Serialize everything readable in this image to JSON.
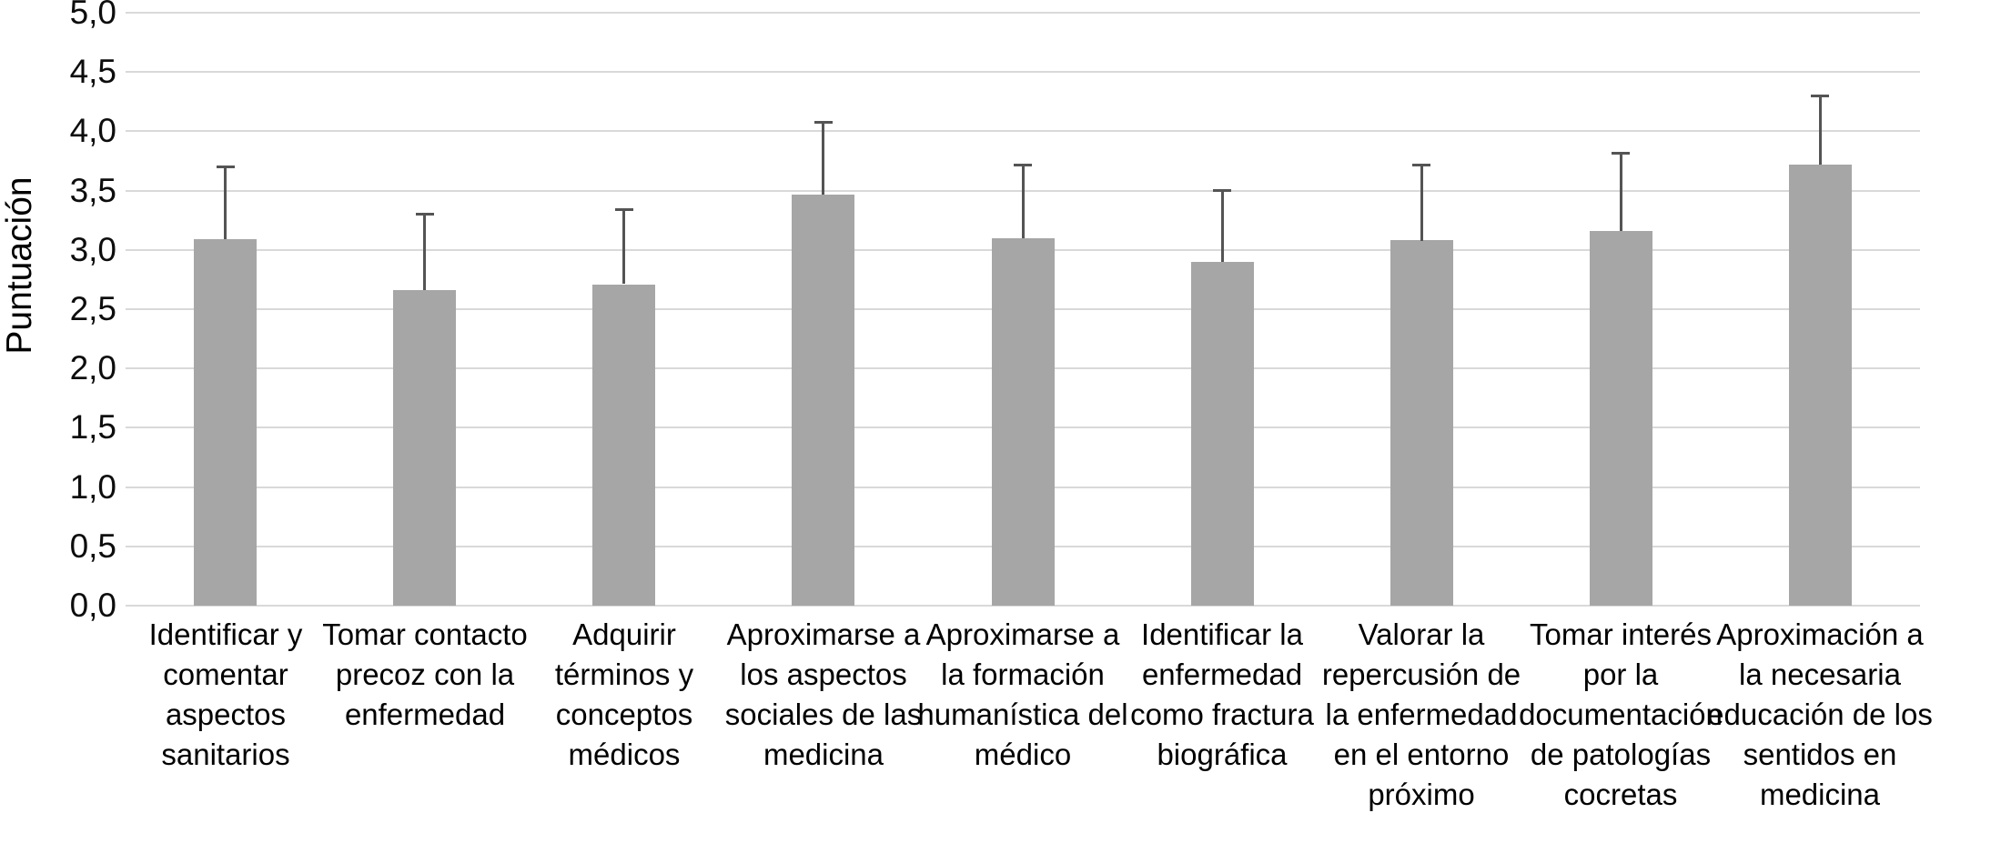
{
  "chart_data": {
    "type": "bar",
    "title": "",
    "ylabel": "Puntuación",
    "xlabel": "",
    "ylim": [
      0,
      5
    ],
    "ytick_step": 0.5,
    "ytick_labels_top_to_bottom": [
      "5,0",
      "4,5",
      "4,0",
      "3,5",
      "3,0",
      "2,5",
      "2,0",
      "1,5",
      "1,0",
      "0,5",
      "0,0"
    ],
    "grid": "horizontal",
    "legend": "none",
    "bar_color": "#a6a6a6",
    "error_bar_color": "#545454",
    "gridline_color": "#d9d9d9",
    "categories": [
      "Identificar y\ncomentar\naspectos\nsanitarios",
      "Tomar contacto\nprecoz con la\nenfermedad",
      "Adquirir\ntérminos y\nconceptos\nmédicos",
      "Aproximarse a\nlos aspectos\nsociales de las\nmedicina",
      "Aproximarse a\nla formación\nhumanística del\nmédico",
      "Identificar la\nenfermedad\ncomo fractura\nbiográfica",
      "Valorar la\nrepercusión de\nla enfermedad\nen el entorno\npróximo",
      "Tomar interés\npor la\ndocumentación\nde patologías\ncocretas",
      "Aproximación a\nla necesaria\neducación de los\nsentidos en\nmedicina"
    ],
    "values": [
      3.09,
      2.66,
      2.71,
      3.47,
      3.1,
      2.9,
      3.08,
      3.16,
      3.72
    ],
    "errors_upper": [
      0.62,
      0.65,
      0.64,
      0.62,
      0.63,
      0.61,
      0.65,
      0.67,
      0.59
    ]
  }
}
